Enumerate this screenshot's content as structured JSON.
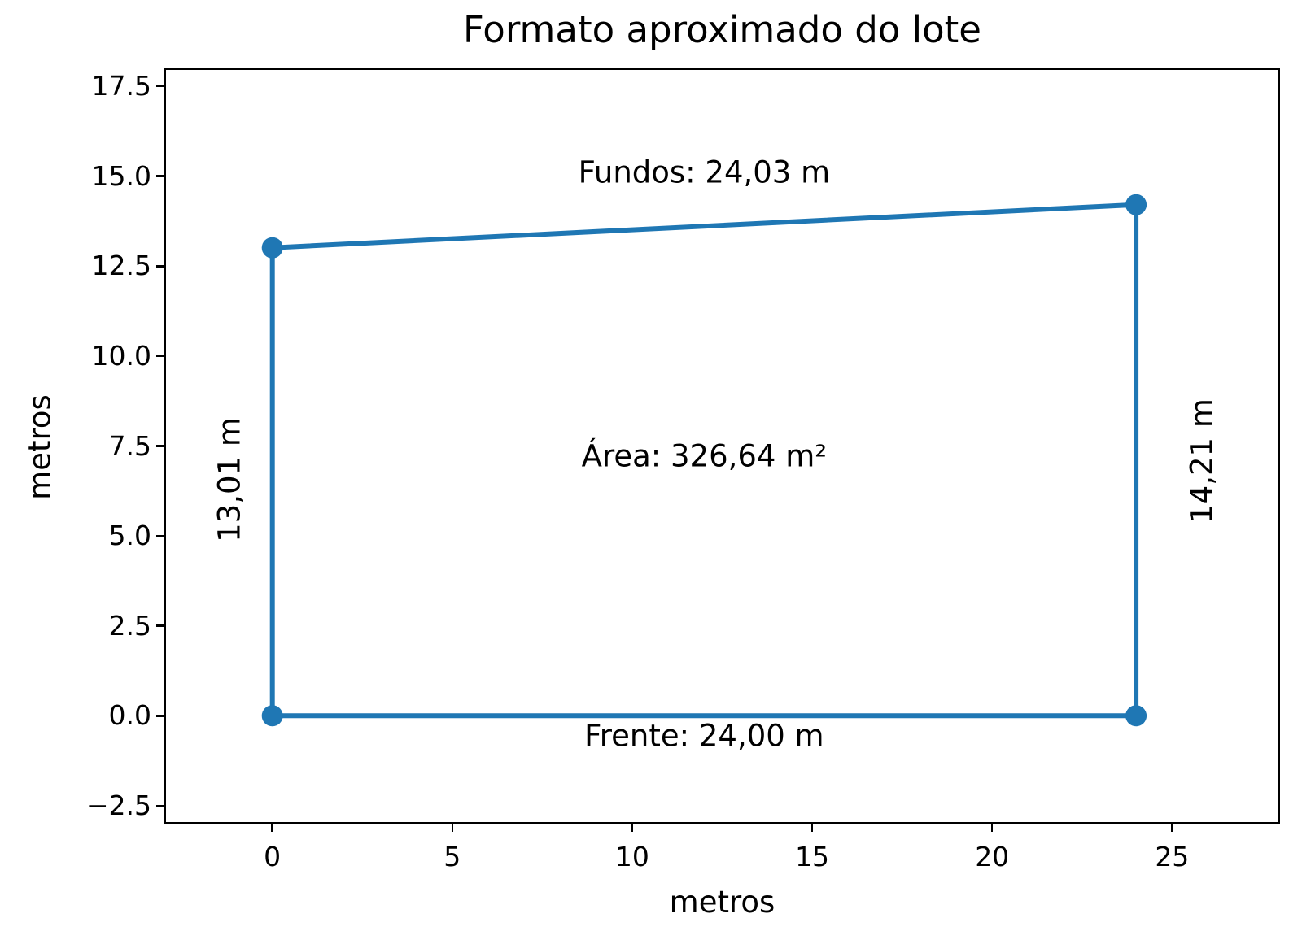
{
  "chart": {
    "title": "Formato aproximado do lote",
    "xlabel": "metros",
    "ylabel": "metros"
  },
  "chart_data": {
    "type": "line",
    "title": "Formato aproximado do lote",
    "xlabel": "metros",
    "ylabel": "metros",
    "xlim": [
      -3,
      28
    ],
    "ylim": [
      -3,
      18
    ],
    "grid": false,
    "legend_position": "none",
    "xticks": {
      "values": [
        0,
        5,
        10,
        15,
        20,
        25
      ],
      "labels": [
        "0",
        "5",
        "10",
        "15",
        "20",
        "25"
      ]
    },
    "yticks": {
      "values": [
        -2.5,
        0.0,
        2.5,
        5.0,
        7.5,
        10.0,
        12.5,
        15.0,
        17.5
      ],
      "labels": [
        "−2.5",
        "0.0",
        "2.5",
        "5.0",
        "7.5",
        "10.0",
        "12.5",
        "15.0",
        "17.5"
      ]
    },
    "series": [
      {
        "name": "lote-outline",
        "color": "#1f77b4",
        "line_width": 6,
        "marker": "o",
        "marker_radius": 13,
        "closed": true,
        "points": [
          [
            0,
            0
          ],
          [
            24,
            0
          ],
          [
            24,
            14.21
          ],
          [
            0,
            13.01
          ]
        ]
      }
    ],
    "annotations": [
      {
        "id": "fundos",
        "text": "Fundos: 24,03 m",
        "x": 12.0,
        "y": 15.08,
        "rotation": 0
      },
      {
        "id": "area",
        "text": "Área: 326,64 m²",
        "x": 12.0,
        "y": 7.19,
        "rotation": 0
      },
      {
        "id": "frente",
        "text": "Frente: 24,00 m",
        "x": 12.0,
        "y": -0.58,
        "rotation": 0
      },
      {
        "id": "lado-esquerdo",
        "text": "13,01 m",
        "x": -1.17,
        "y": 6.56,
        "rotation": 90
      },
      {
        "id": "lado-direito",
        "text": "14,21 m",
        "x": 25.85,
        "y": 7.08,
        "rotation": 90
      }
    ]
  }
}
